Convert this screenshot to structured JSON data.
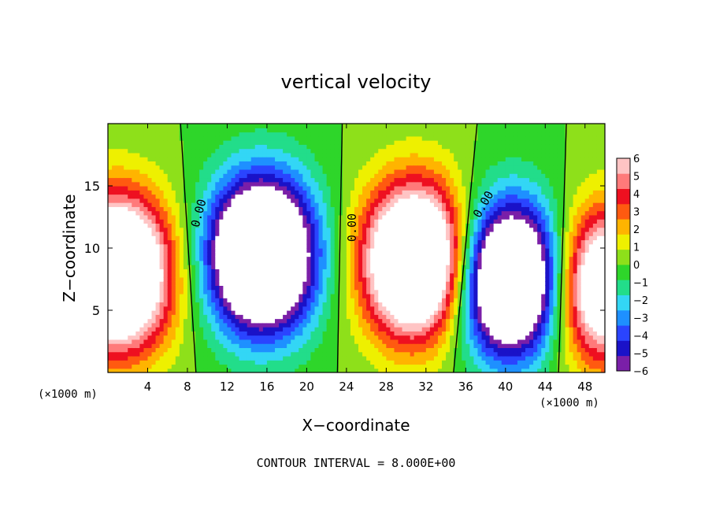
{
  "chart_data": {
    "type": "heatmap",
    "title": "vertical velocity",
    "xlabel": "X−coordinate",
    "ylabel": "Z−coordinate",
    "x_unit_label_left": "(×1000 m)",
    "x_unit_label_right": "(×1000 m)",
    "xlim": [
      0,
      50
    ],
    "ylim": [
      0,
      20
    ],
    "x_ticks": [
      4,
      8,
      12,
      16,
      20,
      24,
      28,
      32,
      36,
      40,
      44,
      48
    ],
    "x_tick_labels": [
      "4",
      "8",
      "12",
      "16",
      "20",
      "24",
      "28",
      "32",
      "36",
      "40",
      "44",
      "48"
    ],
    "y_ticks": [
      5,
      10,
      15
    ],
    "y_tick_labels": [
      "5",
      "10",
      "15"
    ],
    "footer": "CONTOUR INTERVAL = 8.000E+00",
    "contour_labels": [
      "0.00",
      "0.00",
      "0.00"
    ],
    "colorbar": {
      "min": -6,
      "max": 6,
      "labels": [
        "6",
        "5",
        "4",
        "3",
        "2",
        "1",
        "0",
        "−1",
        "−2",
        "−3",
        "−4",
        "−5",
        "−6"
      ],
      "colors": [
        "#7a1fa8",
        "#1a12c8",
        "#2a44ff",
        "#1e90ff",
        "#33d6f5",
        "#22dd8a",
        "#2ed62a",
        "#8ee01a",
        "#eef000",
        "#ffb400",
        "#ff5a10",
        "#ee1020",
        "#ff7a7a",
        "#ffc4c4"
      ]
    },
    "cells": [
      {
        "x": 1,
        "z": 8,
        "w": 13
      },
      {
        "x": 15.5,
        "z": 9.5,
        "w": -14
      },
      {
        "x": 31,
        "z": 9,
        "w": 13
      },
      {
        "x": 40.5,
        "z": 7.5,
        "w": -13
      },
      {
        "x": 50,
        "z": 7,
        "w": 10
      }
    ]
  }
}
